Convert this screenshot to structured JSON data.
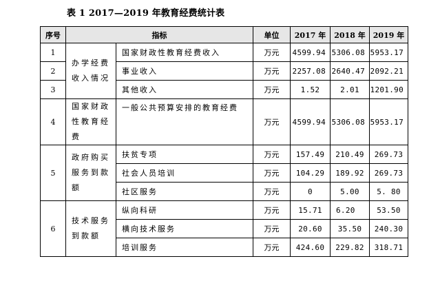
{
  "caption": "表 1 2017—2019 年教育经费统计表",
  "headers": {
    "seq": "序号",
    "indicator": "指标",
    "unit": "单位",
    "y2017": "2017 年",
    "y2018": "2018 年",
    "y2019": "2019 年"
  },
  "groups": [
    {
      "seq": "1",
      "category": "办学经费收入情况",
      "item": "国家财政性教育经费收入",
      "unit": "万元",
      "v2017": "4599.94",
      "v2018": "5306.08",
      "v2019": "5953.17"
    },
    {
      "seq": "2",
      "item": "事业收入",
      "unit": "万元",
      "v2017": "2257.08",
      "v2018": "2640.47",
      "v2019": "2092.21"
    },
    {
      "seq": "3",
      "item": "其他收入",
      "unit": "万元",
      "v2017": "1.52",
      "v2018": "2.01",
      "v2019": "1201.90"
    },
    {
      "seq": "4",
      "category": "国家财政性教育经费",
      "item": "一般公共预算安排的教育经费",
      "unit": "万元",
      "v2017": "4599.94",
      "v2018": "5306.08",
      "v2019": "5953.17"
    },
    {
      "seq": "5",
      "category": "政府购买服务到款额",
      "rows": [
        {
          "item": "扶贫专项",
          "unit": "万元",
          "v2017": "157.49",
          "v2018": "210.49",
          "v2019": "269.73"
        },
        {
          "item": "社会人员培训",
          "unit": "万元",
          "v2017": "104.29",
          "v2018": "189.92",
          "v2019": "269.73"
        },
        {
          "item": "社区服务",
          "unit": "万元",
          "v2017": "0",
          "v2018": "5.00",
          "v2019": "5. 80"
        }
      ]
    },
    {
      "seq": "6",
      "category": "技术服务到款额",
      "rows": [
        {
          "item": "纵向科研",
          "unit": "万元",
          "v2017": "15.71",
          "v2018": "6.20",
          "v2019": "53.50"
        },
        {
          "item": "横向技术服务",
          "unit": "万元",
          "v2017": "20.60",
          "v2018": "35.50",
          "v2019": "240.30"
        },
        {
          "item": "培训服务",
          "unit": "万元",
          "v2017": "424.60",
          "v2018": "229.82",
          "v2019": "318.71"
        }
      ]
    }
  ]
}
